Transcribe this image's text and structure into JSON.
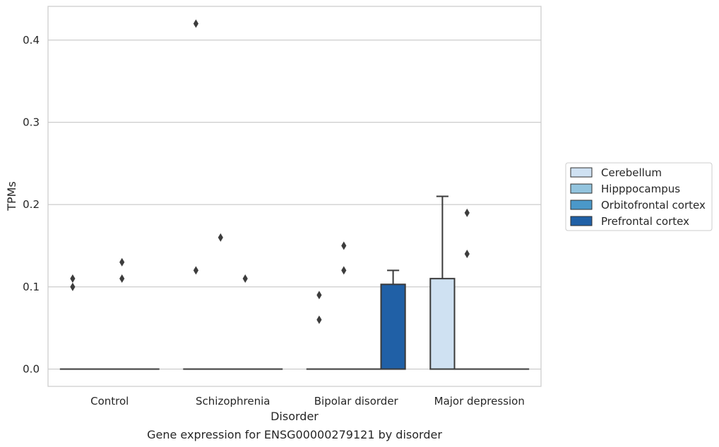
{
  "chart_data": {
    "type": "box",
    "xlabel": "Disorder",
    "ylabel": "TPMs",
    "caption": "Gene expression for ENSG00000279121 by disorder",
    "categories": [
      "Control",
      "Schizophrenia",
      "Bipolar disorder",
      "Major depression"
    ],
    "hue_order": [
      "Cerebellum",
      "Hipppocampus",
      "Orbitofrontal cortex",
      "Prefrontal cortex"
    ],
    "colors": {
      "Cerebellum": "#cfe1f2",
      "Hipppocampus": "#93c4de",
      "Orbitofrontal cortex": "#4a98c9",
      "Prefrontal cortex": "#2060a6",
      "edge": "#3a3a3a",
      "grid": "#cccccc"
    },
    "ylim": [
      -0.021,
      0.441
    ],
    "yticks": [
      0.0,
      0.1,
      0.2,
      0.3,
      0.4
    ],
    "ytick_labels": [
      "0.0",
      "0.1",
      "0.2",
      "0.3",
      "0.4"
    ],
    "grid": true,
    "legend_position": "outside-right",
    "boxes": [
      {
        "category": "Control",
        "series": "Cerebellum",
        "q1": 0,
        "median": 0,
        "q3": 0,
        "whislo": 0,
        "whishi": 0,
        "fliers": [
          0.1,
          0.11
        ]
      },
      {
        "category": "Control",
        "series": "Hipppocampus",
        "q1": 0,
        "median": 0,
        "q3": 0,
        "whislo": 0,
        "whishi": 0,
        "fliers": []
      },
      {
        "category": "Control",
        "series": "Orbitofrontal cortex",
        "q1": 0,
        "median": 0,
        "q3": 0,
        "whislo": 0,
        "whishi": 0,
        "fliers": [
          0.11,
          0.13
        ]
      },
      {
        "category": "Control",
        "series": "Prefrontal cortex",
        "q1": 0,
        "median": 0,
        "q3": 0,
        "whislo": 0,
        "whishi": 0,
        "fliers": []
      },
      {
        "category": "Schizophrenia",
        "series": "Cerebellum",
        "q1": 0,
        "median": 0,
        "q3": 0,
        "whislo": 0,
        "whishi": 0,
        "fliers": [
          0.12,
          0.42
        ]
      },
      {
        "category": "Schizophrenia",
        "series": "Hipppocampus",
        "q1": 0,
        "median": 0,
        "q3": 0,
        "whislo": 0,
        "whishi": 0,
        "fliers": [
          0.16
        ]
      },
      {
        "category": "Schizophrenia",
        "series": "Orbitofrontal cortex",
        "q1": 0,
        "median": 0,
        "q3": 0,
        "whislo": 0,
        "whishi": 0,
        "fliers": [
          0.11
        ]
      },
      {
        "category": "Schizophrenia",
        "series": "Prefrontal cortex",
        "q1": 0,
        "median": 0,
        "q3": 0,
        "whislo": 0,
        "whishi": 0,
        "fliers": []
      },
      {
        "category": "Bipolar disorder",
        "series": "Cerebellum",
        "q1": 0,
        "median": 0,
        "q3": 0,
        "whislo": 0,
        "whishi": 0,
        "fliers": [
          0.06,
          0.09
        ]
      },
      {
        "category": "Bipolar disorder",
        "series": "Hipppocampus",
        "q1": 0,
        "median": 0,
        "q3": 0,
        "whislo": 0,
        "whishi": 0,
        "fliers": [
          0.12,
          0.15
        ]
      },
      {
        "category": "Bipolar disorder",
        "series": "Orbitofrontal cortex",
        "q1": 0,
        "median": 0,
        "q3": 0,
        "whislo": 0,
        "whishi": 0,
        "fliers": []
      },
      {
        "category": "Bipolar disorder",
        "series": "Prefrontal cortex",
        "q1": 0,
        "median": 0,
        "q3": 0.103,
        "whislo": 0,
        "whishi": 0.12,
        "fliers": []
      },
      {
        "category": "Major depression",
        "series": "Cerebellum",
        "q1": 0,
        "median": 0,
        "q3": 0.11,
        "whislo": 0,
        "whishi": 0.21,
        "fliers": []
      },
      {
        "category": "Major depression",
        "series": "Hipppocampus",
        "q1": 0,
        "median": 0,
        "q3": 0,
        "whislo": 0,
        "whishi": 0,
        "fliers": [
          0.14,
          0.19
        ]
      },
      {
        "category": "Major depression",
        "series": "Orbitofrontal cortex",
        "q1": 0,
        "median": 0,
        "q3": 0,
        "whislo": 0,
        "whishi": 0,
        "fliers": []
      },
      {
        "category": "Major depression",
        "series": "Prefrontal cortex",
        "q1": 0,
        "median": 0,
        "q3": 0,
        "whislo": 0,
        "whishi": 0,
        "fliers": []
      }
    ]
  }
}
